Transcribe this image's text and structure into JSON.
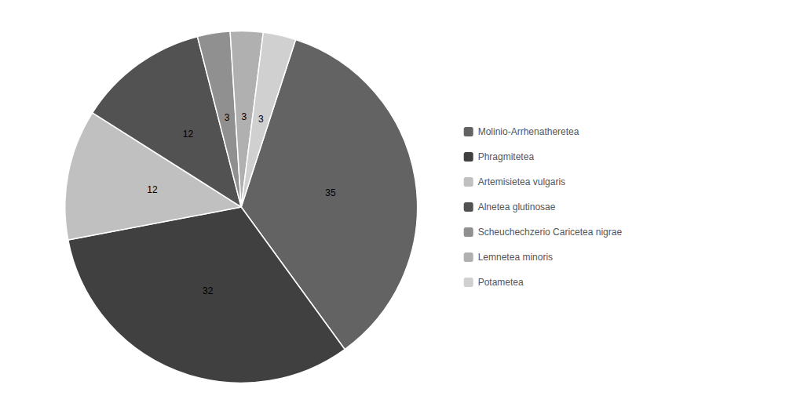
{
  "chart_data": {
    "type": "pie",
    "categories": [
      "Molinio-Arrhenatheretea",
      "Phragmitetea",
      "Artemisietea vulgaris",
      "Alnetea glutinosae",
      "Scheuchechzerio Caricetea nigrae",
      "Lemnetea minoris",
      "Potametea"
    ],
    "values": [
      35,
      32,
      12,
      12,
      3,
      3,
      3
    ],
    "colors": [
      "#636363",
      "#404040",
      "#c0c0c0",
      "#525252",
      "#909090",
      "#b0b0b0",
      "#d0d0d0"
    ],
    "data_labels": true,
    "legend": "right"
  }
}
